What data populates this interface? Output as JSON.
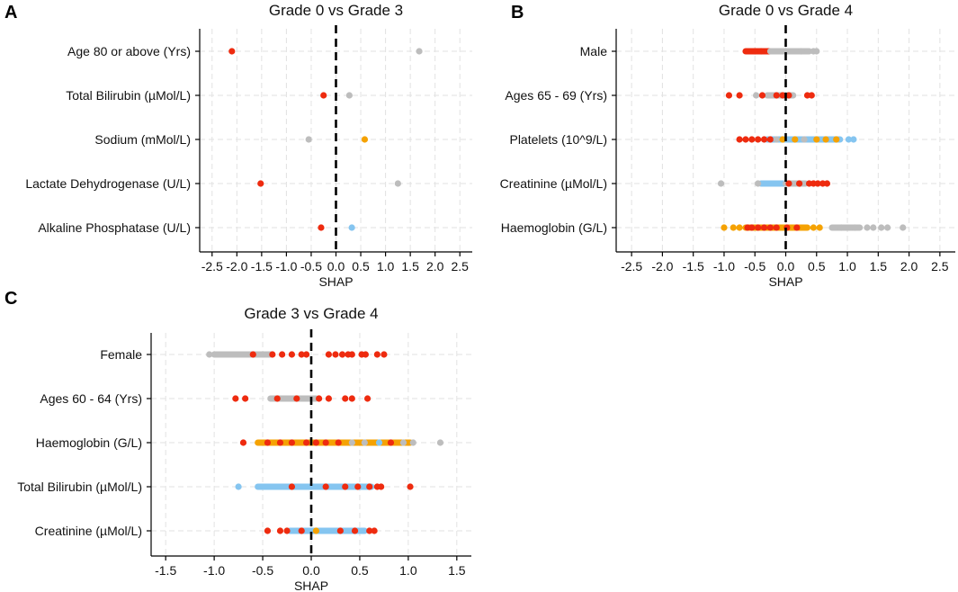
{
  "figure": {
    "panel_letters": [
      "A",
      "B",
      "C"
    ]
  },
  "colors": {
    "red": "#ee2b0f",
    "grey": "#bdbdbd",
    "orange": "#f5a202",
    "blue": "#85c5f0"
  },
  "chart_data": [
    {
      "panel": "A",
      "type": "scatter",
      "title": "Grade 0 vs Grade 3",
      "xlabel": "SHAP",
      "xlim": [
        -2.75,
        2.75
      ],
      "xticks": [
        -2.5,
        -2.0,
        -1.5,
        -1.0,
        -0.5,
        0.0,
        0.5,
        1.0,
        1.5,
        2.0,
        2.5
      ],
      "xtick_labels": [
        "-2.5",
        "-2.0",
        "-1.5",
        "-1.0",
        "-0.5",
        "0.0",
        "0.5",
        "1.0",
        "1.5",
        "2.0",
        "2.5"
      ],
      "features": [
        "Age 80 or above (Yrs)",
        "Total Bilirubin (µMol/L)",
        "Sodium (mMol/L)",
        "Lactate Dehydrogenase (U/L)",
        "Alkaline Phosphatase (U/L)"
      ],
      "points": [
        {
          "f": 0,
          "x": -2.1,
          "c": "red"
        },
        {
          "f": 0,
          "x": 1.68,
          "c": "grey"
        },
        {
          "f": 1,
          "x": -0.25,
          "c": "red"
        },
        {
          "f": 1,
          "x": 0.27,
          "c": "grey"
        },
        {
          "f": 2,
          "x": -0.55,
          "c": "grey"
        },
        {
          "f": 2,
          "x": 0.58,
          "c": "orange"
        },
        {
          "f": 3,
          "x": -1.52,
          "c": "red"
        },
        {
          "f": 3,
          "x": 1.25,
          "c": "grey"
        },
        {
          "f": 4,
          "x": -0.3,
          "c": "red"
        },
        {
          "f": 4,
          "x": 0.32,
          "c": "blue"
        }
      ]
    },
    {
      "panel": "B",
      "type": "scatter",
      "title": "Grade 0 vs Grade 4",
      "xlabel": "SHAP",
      "xlim": [
        -2.75,
        2.75
      ],
      "xticks": [
        -2.5,
        -2.0,
        -1.5,
        -1.0,
        -0.5,
        0.0,
        0.5,
        1.0,
        1.5,
        2.0,
        2.5
      ],
      "xtick_labels": [
        "-2.5",
        "-2.0",
        "-1.5",
        "-1.0",
        "-0.5",
        "0.0",
        "0.5",
        "1.0",
        "1.5",
        "2.0",
        "2.5"
      ],
      "features": [
        "Male",
        "Ages 65 - 69 (Yrs)",
        "Platelets (10^9/L)",
        "Creatinine (µMol/L)",
        "Haemoglobin (G/L)"
      ],
      "segments": [
        {
          "f": 0,
          "x0": -0.65,
          "x1": -0.25,
          "c": "red"
        },
        {
          "f": 0,
          "x0": -0.25,
          "x1": 0.38,
          "c": "grey"
        },
        {
          "f": 1,
          "x0": -0.3,
          "x1": 0.12,
          "c": "grey"
        },
        {
          "f": 2,
          "x0": -0.3,
          "x1": 0.88,
          "c": "blue"
        },
        {
          "f": 3,
          "x0": -0.4,
          "x1": 0.0,
          "c": "blue"
        },
        {
          "f": 3,
          "x0": 0.0,
          "x1": 0.32,
          "c": "grey"
        },
        {
          "f": 4,
          "x0": -0.65,
          "x1": 0.35,
          "c": "orange"
        },
        {
          "f": 4,
          "x0": 0.75,
          "x1": 1.2,
          "c": "grey"
        }
      ],
      "points": [
        {
          "f": 0,
          "x": -0.5,
          "c": "red"
        },
        {
          "f": 0,
          "x": -0.4,
          "c": "red"
        },
        {
          "f": 0,
          "x": 0.25,
          "c": "grey"
        },
        {
          "f": 0,
          "x": 0.45,
          "c": "grey"
        },
        {
          "f": 0,
          "x": 0.5,
          "c": "grey"
        },
        {
          "f": 1,
          "x": -0.92,
          "c": "red"
        },
        {
          "f": 1,
          "x": -0.75,
          "c": "red"
        },
        {
          "f": 1,
          "x": -0.48,
          "c": "grey"
        },
        {
          "f": 1,
          "x": -0.38,
          "c": "red"
        },
        {
          "f": 1,
          "x": -0.15,
          "c": "red"
        },
        {
          "f": 1,
          "x": -0.05,
          "c": "red"
        },
        {
          "f": 1,
          "x": 0.05,
          "c": "red"
        },
        {
          "f": 1,
          "x": 0.35,
          "c": "red"
        },
        {
          "f": 1,
          "x": 0.42,
          "c": "red"
        },
        {
          "f": 2,
          "x": -0.75,
          "c": "red"
        },
        {
          "f": 2,
          "x": -0.65,
          "c": "red"
        },
        {
          "f": 2,
          "x": -0.55,
          "c": "red"
        },
        {
          "f": 2,
          "x": -0.45,
          "c": "red"
        },
        {
          "f": 2,
          "x": -0.35,
          "c": "red"
        },
        {
          "f": 2,
          "x": -0.25,
          "c": "red"
        },
        {
          "f": 2,
          "x": -0.15,
          "c": "grey"
        },
        {
          "f": 2,
          "x": -0.05,
          "c": "orange"
        },
        {
          "f": 2,
          "x": 0.15,
          "c": "orange"
        },
        {
          "f": 2,
          "x": 0.3,
          "c": "grey"
        },
        {
          "f": 2,
          "x": 0.5,
          "c": "orange"
        },
        {
          "f": 2,
          "x": 0.65,
          "c": "orange"
        },
        {
          "f": 2,
          "x": 0.82,
          "c": "orange"
        },
        {
          "f": 2,
          "x": 1.02,
          "c": "blue"
        },
        {
          "f": 2,
          "x": 1.1,
          "c": "blue"
        },
        {
          "f": 3,
          "x": -1.05,
          "c": "grey"
        },
        {
          "f": 3,
          "x": -0.45,
          "c": "grey"
        },
        {
          "f": 3,
          "x": 0.05,
          "c": "red"
        },
        {
          "f": 3,
          "x": 0.22,
          "c": "red"
        },
        {
          "f": 3,
          "x": 0.38,
          "c": "red"
        },
        {
          "f": 3,
          "x": 0.45,
          "c": "red"
        },
        {
          "f": 3,
          "x": 0.52,
          "c": "red"
        },
        {
          "f": 3,
          "x": 0.6,
          "c": "red"
        },
        {
          "f": 3,
          "x": 0.67,
          "c": "red"
        },
        {
          "f": 4,
          "x": -1.0,
          "c": "orange"
        },
        {
          "f": 4,
          "x": -0.85,
          "c": "orange"
        },
        {
          "f": 4,
          "x": -0.75,
          "c": "orange"
        },
        {
          "f": 4,
          "x": -0.62,
          "c": "red"
        },
        {
          "f": 4,
          "x": -0.55,
          "c": "red"
        },
        {
          "f": 4,
          "x": -0.45,
          "c": "red"
        },
        {
          "f": 4,
          "x": -0.35,
          "c": "red"
        },
        {
          "f": 4,
          "x": -0.25,
          "c": "red"
        },
        {
          "f": 4,
          "x": -0.15,
          "c": "red"
        },
        {
          "f": 4,
          "x": 0.02,
          "c": "red"
        },
        {
          "f": 4,
          "x": 0.18,
          "c": "red"
        },
        {
          "f": 4,
          "x": 0.45,
          "c": "orange"
        },
        {
          "f": 4,
          "x": 0.55,
          "c": "orange"
        },
        {
          "f": 4,
          "x": 0.9,
          "c": "grey"
        },
        {
          "f": 4,
          "x": 1.12,
          "c": "grey"
        },
        {
          "f": 4,
          "x": 1.32,
          "c": "grey"
        },
        {
          "f": 4,
          "x": 1.42,
          "c": "grey"
        },
        {
          "f": 4,
          "x": 1.55,
          "c": "grey"
        },
        {
          "f": 4,
          "x": 1.65,
          "c": "grey"
        },
        {
          "f": 4,
          "x": 1.9,
          "c": "grey"
        }
      ]
    },
    {
      "panel": "C",
      "type": "scatter",
      "title": "Grade 3 vs Grade 4",
      "xlabel": "SHAP",
      "xlim": [
        -1.65,
        1.65
      ],
      "xticks": [
        -1.5,
        -1.0,
        -0.5,
        0.0,
        0.5,
        1.0,
        1.5
      ],
      "xtick_labels": [
        "-1.5",
        "-1.0",
        "-0.5",
        "0.0",
        "0.5",
        "1.0",
        "1.5"
      ],
      "features": [
        "Female",
        "Ages 60 - 64 (Yrs)",
        "Haemoglobin (G/L)",
        "Total Bilirubin (µMol/L)",
        "Creatinine (µMol/L)"
      ],
      "segments": [
        {
          "f": 0,
          "x0": -1.0,
          "x1": -0.42,
          "c": "grey"
        },
        {
          "f": 1,
          "x0": -0.42,
          "x1": 0.05,
          "c": "grey"
        },
        {
          "f": 2,
          "x0": -0.55,
          "x1": 1.02,
          "c": "orange"
        },
        {
          "f": 3,
          "x0": -0.55,
          "x1": 0.62,
          "c": "blue"
        },
        {
          "f": 4,
          "x0": -0.22,
          "x1": 0.55,
          "c": "blue"
        }
      ],
      "points": [
        {
          "f": 0,
          "x": -1.05,
          "c": "grey"
        },
        {
          "f": 0,
          "x": -0.6,
          "c": "red"
        },
        {
          "f": 0,
          "x": -0.5,
          "c": "grey"
        },
        {
          "f": 0,
          "x": -0.4,
          "c": "red"
        },
        {
          "f": 0,
          "x": -0.3,
          "c": "red"
        },
        {
          "f": 0,
          "x": -0.2,
          "c": "red"
        },
        {
          "f": 0,
          "x": -0.1,
          "c": "red"
        },
        {
          "f": 0,
          "x": -0.05,
          "c": "red"
        },
        {
          "f": 0,
          "x": 0.18,
          "c": "red"
        },
        {
          "f": 0,
          "x": 0.25,
          "c": "red"
        },
        {
          "f": 0,
          "x": 0.32,
          "c": "red"
        },
        {
          "f": 0,
          "x": 0.38,
          "c": "red"
        },
        {
          "f": 0,
          "x": 0.42,
          "c": "red"
        },
        {
          "f": 0,
          "x": 0.52,
          "c": "red"
        },
        {
          "f": 0,
          "x": 0.56,
          "c": "red"
        },
        {
          "f": 0,
          "x": 0.68,
          "c": "red"
        },
        {
          "f": 0,
          "x": 0.75,
          "c": "red"
        },
        {
          "f": 1,
          "x": -0.78,
          "c": "red"
        },
        {
          "f": 1,
          "x": -0.68,
          "c": "red"
        },
        {
          "f": 1,
          "x": -0.35,
          "c": "red"
        },
        {
          "f": 1,
          "x": -0.15,
          "c": "red"
        },
        {
          "f": 1,
          "x": 0.08,
          "c": "red"
        },
        {
          "f": 1,
          "x": 0.18,
          "c": "red"
        },
        {
          "f": 1,
          "x": 0.35,
          "c": "red"
        },
        {
          "f": 1,
          "x": 0.42,
          "c": "red"
        },
        {
          "f": 1,
          "x": 0.58,
          "c": "red"
        },
        {
          "f": 2,
          "x": -0.7,
          "c": "red"
        },
        {
          "f": 2,
          "x": -0.45,
          "c": "red"
        },
        {
          "f": 2,
          "x": -0.32,
          "c": "red"
        },
        {
          "f": 2,
          "x": -0.2,
          "c": "red"
        },
        {
          "f": 2,
          "x": -0.05,
          "c": "red"
        },
        {
          "f": 2,
          "x": 0.05,
          "c": "red"
        },
        {
          "f": 2,
          "x": 0.15,
          "c": "red"
        },
        {
          "f": 2,
          "x": 0.28,
          "c": "red"
        },
        {
          "f": 2,
          "x": 0.42,
          "c": "grey"
        },
        {
          "f": 2,
          "x": 0.55,
          "c": "grey"
        },
        {
          "f": 2,
          "x": 0.7,
          "c": "blue"
        },
        {
          "f": 2,
          "x": 0.82,
          "c": "red"
        },
        {
          "f": 2,
          "x": 0.95,
          "c": "grey"
        },
        {
          "f": 2,
          "x": 1.05,
          "c": "grey"
        },
        {
          "f": 2,
          "x": 1.33,
          "c": "grey"
        },
        {
          "f": 3,
          "x": -0.75,
          "c": "blue"
        },
        {
          "f": 3,
          "x": -0.2,
          "c": "red"
        },
        {
          "f": 3,
          "x": 0.15,
          "c": "red"
        },
        {
          "f": 3,
          "x": 0.35,
          "c": "red"
        },
        {
          "f": 3,
          "x": 0.48,
          "c": "red"
        },
        {
          "f": 3,
          "x": 0.6,
          "c": "red"
        },
        {
          "f": 3,
          "x": 0.68,
          "c": "red"
        },
        {
          "f": 3,
          "x": 0.72,
          "c": "red"
        },
        {
          "f": 3,
          "x": 1.02,
          "c": "red"
        },
        {
          "f": 4,
          "x": -0.45,
          "c": "red"
        },
        {
          "f": 4,
          "x": -0.32,
          "c": "red"
        },
        {
          "f": 4,
          "x": -0.25,
          "c": "red"
        },
        {
          "f": 4,
          "x": -0.1,
          "c": "red"
        },
        {
          "f": 4,
          "x": 0.05,
          "c": "orange"
        },
        {
          "f": 4,
          "x": 0.3,
          "c": "red"
        },
        {
          "f": 4,
          "x": 0.45,
          "c": "red"
        },
        {
          "f": 4,
          "x": 0.6,
          "c": "red"
        },
        {
          "f": 4,
          "x": 0.65,
          "c": "red"
        }
      ]
    }
  ]
}
